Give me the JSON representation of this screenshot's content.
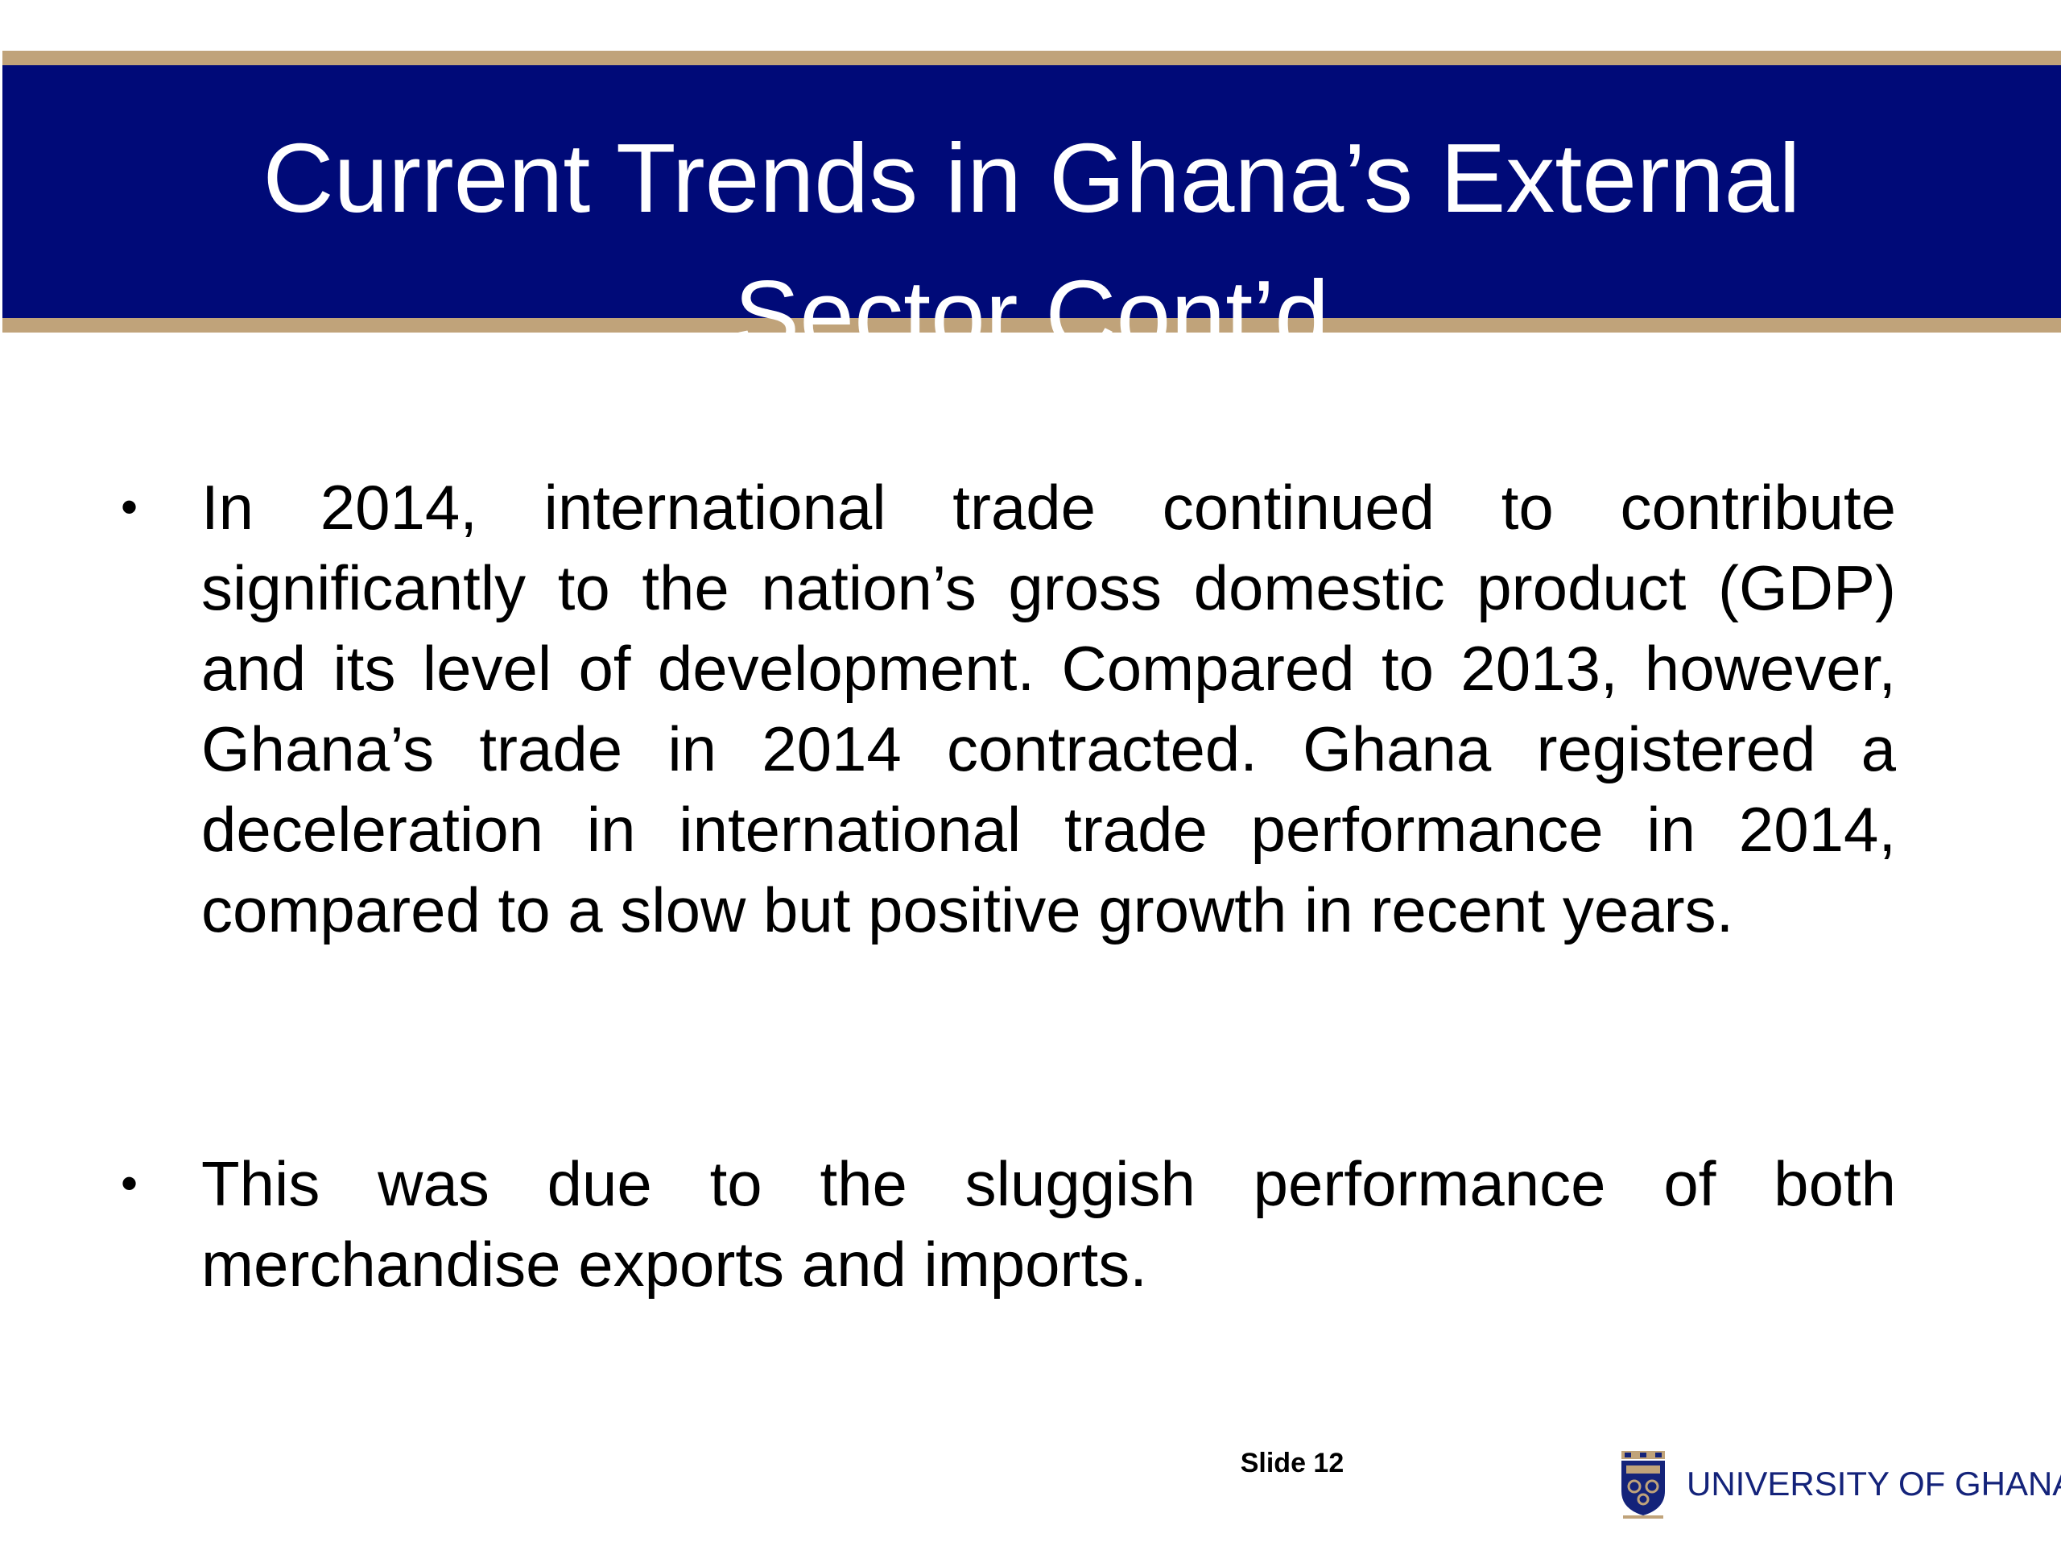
{
  "slide": {
    "title_line1": "Current Trends in Ghana’s External",
    "title_line2": "Sector Cont’d",
    "bullets": [
      "In 2014, international trade continued to contribute significantly to the nation’s gross domestic product (GDP) and its level of development. Compared to 2013, however, Ghana’s trade in 2014 contracted. Ghana registered a deceleration in international trade performance in 2014, compared to a slow but positive growth in recent years.",
      "This was due to the sluggish performance of both merchandise exports and imports."
    ],
    "bullet_symbol": "•",
    "slide_number": "Slide 12"
  },
  "footer": {
    "logo_text": "UNIVERSITY OF GHANA",
    "logo_icon": "university-crest-icon"
  },
  "colors": {
    "title_bar": "#000a78",
    "title_border": "#c0a37a",
    "title_text": "#ffffff",
    "logo_text": "#14237a"
  }
}
